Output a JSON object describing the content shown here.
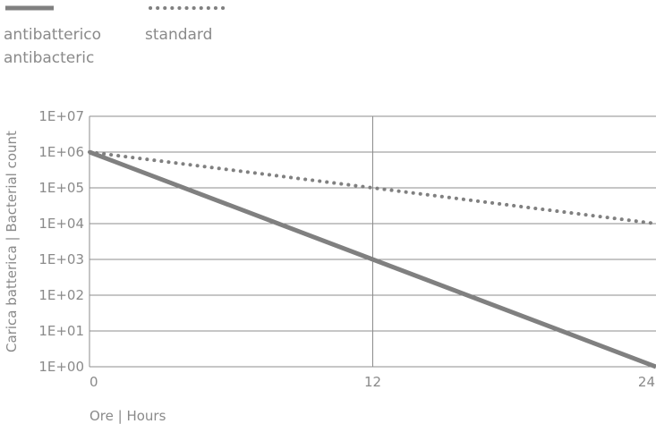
{
  "chart_data": {
    "type": "line",
    "title": "",
    "xlabel": "Ore | Hours",
    "ylabel": "Carica batterica | Bacterial count",
    "x_scale": "linear",
    "y_scale": "log",
    "xlim": [
      0,
      24
    ],
    "ylim": [
      1,
      10000000
    ],
    "x_ticks": [
      0,
      12,
      24
    ],
    "x_tick_labels": [
      "0",
      "12",
      "24"
    ],
    "y_ticks": [
      1,
      10,
      100,
      1000,
      10000,
      100000,
      1000000,
      10000000
    ],
    "y_tick_labels": [
      "1E+00",
      "1E+01",
      "1E+02",
      "1E+03",
      "1E+04",
      "1E+05",
      "1E+06",
      "1E+07"
    ],
    "grid": {
      "horizontal": true,
      "vertical_at_x": [
        12
      ]
    },
    "legend_position": "top-left",
    "series": [
      {
        "name": "antibatterico\nantibacteric",
        "style": "solid",
        "color": "#808080",
        "x": [
          0,
          12,
          24
        ],
        "y": [
          1000000,
          1000,
          1
        ]
      },
      {
        "name": "standard",
        "style": "dotted",
        "color": "#808080",
        "x": [
          0,
          12,
          24
        ],
        "y": [
          1000000,
          100000,
          10000
        ]
      }
    ]
  }
}
